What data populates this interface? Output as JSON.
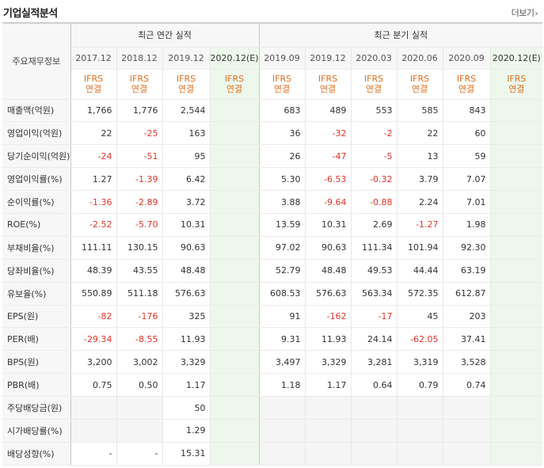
{
  "header": {
    "title": "기업실적분석",
    "more_label": "더보기",
    "more_icon": "chevron-right-icon"
  },
  "table": {
    "corner_label": "주요재무정보",
    "annual_group": "최근 연간 실적",
    "quarter_group": "최근 분기 실적",
    "periods": [
      "2017.12",
      "2018.12",
      "2019.12",
      "2020.12(E)",
      "2019.09",
      "2019.12",
      "2020.03",
      "2020.06",
      "2020.09",
      "2020.12(E)"
    ],
    "basis_line1": "IFRS",
    "basis_line2": "연결",
    "rows": [
      {
        "label": "매출액(억원)",
        "values": [
          "1,766",
          "1,776",
          "2,544",
          "",
          "683",
          "489",
          "553",
          "585",
          "843",
          ""
        ]
      },
      {
        "label": "영업이익(억원)",
        "values": [
          "22",
          "-25",
          "163",
          "",
          "36",
          "-32",
          "-2",
          "22",
          "60",
          ""
        ]
      },
      {
        "label": "당기순이익(억원)",
        "values": [
          "-24",
          "-51",
          "95",
          "",
          "26",
          "-47",
          "-5",
          "13",
          "59",
          ""
        ]
      },
      {
        "label": "영업이익률(%)",
        "values": [
          "1.27",
          "-1.39",
          "6.42",
          "",
          "5.30",
          "-6.53",
          "-0.32",
          "3.79",
          "7.07",
          ""
        ]
      },
      {
        "label": "순이익률(%)",
        "values": [
          "-1.36",
          "-2.89",
          "3.72",
          "",
          "3.88",
          "-9.64",
          "-0.88",
          "2.24",
          "7.01",
          ""
        ]
      },
      {
        "label": "ROE(%)",
        "values": [
          "-2.52",
          "-5.70",
          "10.31",
          "",
          "13.59",
          "10.31",
          "2.69",
          "-1.27",
          "1.98",
          ""
        ]
      },
      {
        "label": "부채비율(%)",
        "values": [
          "111.11",
          "130.15",
          "90.63",
          "",
          "97.02",
          "90.63",
          "111.34",
          "101.94",
          "92.30",
          ""
        ]
      },
      {
        "label": "당좌비율(%)",
        "values": [
          "48.39",
          "43.55",
          "48.48",
          "",
          "52.79",
          "48.48",
          "49.53",
          "44.44",
          "63.19",
          ""
        ]
      },
      {
        "label": "유보율(%)",
        "values": [
          "550.89",
          "511.18",
          "576.63",
          "",
          "608.53",
          "576.63",
          "563.34",
          "572.35",
          "612.87",
          ""
        ]
      },
      {
        "label": "EPS(원)",
        "values": [
          "-82",
          "-176",
          "325",
          "",
          "91",
          "-162",
          "-17",
          "45",
          "203",
          ""
        ]
      },
      {
        "label": "PER(배)",
        "values": [
          "-29.34",
          "-8.55",
          "11.93",
          "",
          "9.31",
          "11.93",
          "24.14",
          "-62.05",
          "37.41",
          ""
        ]
      },
      {
        "label": "BPS(원)",
        "values": [
          "3,200",
          "3,002",
          "3,329",
          "",
          "3,497",
          "3,329",
          "3,281",
          "3,319",
          "3,528",
          ""
        ]
      },
      {
        "label": "PBR(배)",
        "values": [
          "0.75",
          "0.50",
          "1.17",
          "",
          "1.18",
          "1.17",
          "0.64",
          "0.79",
          "0.74",
          ""
        ]
      },
      {
        "label": "주당배당금(원)",
        "values": [
          "",
          "",
          "50",
          "",
          "",
          "",
          "",
          "",
          "",
          ""
        ]
      },
      {
        "label": "시가배당률(%)",
        "values": [
          "",
          "",
          "1.29",
          "",
          "",
          "",
          "",
          "",
          "",
          ""
        ]
      },
      {
        "label": "배당성향(%)",
        "values": [
          "-",
          "-",
          "15.31",
          "",
          "",
          "",
          "",
          "",
          "",
          ""
        ]
      }
    ]
  },
  "colors": {
    "negative": "#e0352b",
    "ifrs_label": "#e07020",
    "estimate_bg": "#eef7ec",
    "header_bg": "#f7f7f7"
  }
}
